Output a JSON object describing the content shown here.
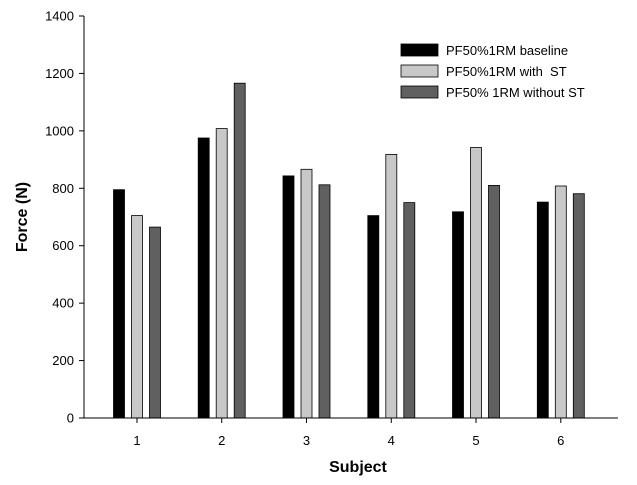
{
  "chart_data": {
    "type": "bar",
    "xlabel": "Subject",
    "ylabel": "Force (N)",
    "ylim": [
      0,
      1400
    ],
    "yticks": [
      0,
      200,
      400,
      600,
      800,
      1000,
      1200,
      1400
    ],
    "categories": [
      "1",
      "2",
      "3",
      "4",
      "5",
      "6"
    ],
    "grid": false,
    "legend_position": "top-right",
    "series": [
      {
        "name": "PF50%1RM baseline",
        "color": "#000000",
        "values": [
          795,
          975,
          843,
          705,
          718,
          752
        ]
      },
      {
        "name": "PF50%1RM with  ST",
        "color": "#c8c8c8",
        "values": [
          705,
          1008,
          866,
          918,
          942,
          808
        ]
      },
      {
        "name": "PF50% 1RM without ST",
        "color": "#606060",
        "values": [
          665,
          1166,
          812,
          750,
          810,
          781
        ]
      }
    ]
  }
}
